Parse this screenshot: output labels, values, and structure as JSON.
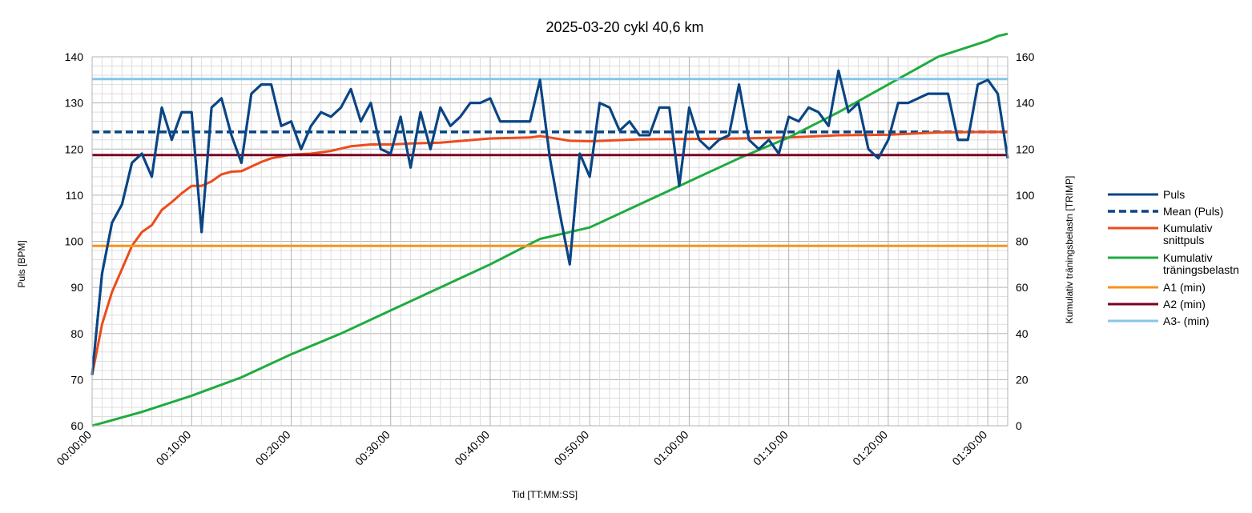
{
  "chart_data": {
    "type": "line",
    "title": "2025-03-20 cykl 40,6 km",
    "xlabel": "Tid [TT:MM:SS]",
    "ylabel": "Puls [BPM]",
    "y2label": "Kumulativ träningsbelastn [TRIMP]",
    "xlim_minutes": [
      0,
      92
    ],
    "ylim": [
      60,
      140
    ],
    "y2lim": [
      0,
      160
    ],
    "x_ticks": [
      "00:00:00",
      "00:10:00",
      "00:20:00",
      "00:30:00",
      "00:40:00",
      "00:50:00",
      "01:00:00",
      "01:10:00",
      "01:20:00",
      "01:30:00"
    ],
    "y_ticks": [
      "60",
      "70",
      "80",
      "90",
      "100",
      "110",
      "120",
      "130",
      "140"
    ],
    "y2_ticks": [
      "0",
      "20",
      "40",
      "60",
      "80",
      "100",
      "120",
      "140",
      "160"
    ],
    "grid": true,
    "legend_position": "right",
    "x_unit": "minutes",
    "series": [
      {
        "name": "Puls",
        "axis": "left",
        "color": "#0a4584",
        "style": "solid",
        "x": [
          0,
          1,
          2,
          3,
          4,
          5,
          6,
          7,
          8,
          9,
          10,
          11,
          12,
          13,
          14,
          15,
          16,
          17,
          18,
          19,
          20,
          21,
          22,
          23,
          24,
          25,
          26,
          27,
          28,
          29,
          30,
          31,
          32,
          33,
          34,
          35,
          36,
          37,
          38,
          39,
          40,
          41,
          42,
          43,
          44,
          45,
          46,
          47,
          48,
          49,
          50,
          51,
          52,
          53,
          54,
          55,
          56,
          57,
          58,
          59,
          60,
          61,
          62,
          63,
          64,
          65,
          66,
          67,
          68,
          69,
          70,
          71,
          72,
          73,
          74,
          75,
          76,
          77,
          78,
          79,
          80,
          81,
          82,
          83,
          84,
          85,
          86,
          87,
          88,
          89,
          90,
          91,
          92
        ],
        "values": [
          71,
          93,
          104,
          108,
          117,
          119,
          114,
          129,
          122,
          128,
          128,
          102,
          129,
          131,
          123,
          117,
          132,
          134,
          134,
          125,
          126,
          120,
          125,
          128,
          127,
          129,
          133,
          126,
          130,
          120,
          119,
          127,
          116,
          128,
          120,
          129,
          125,
          127,
          130,
          130,
          131,
          126,
          126,
          126,
          126,
          135,
          118,
          106,
          95,
          119,
          114,
          130,
          129,
          124,
          126,
          123,
          123,
          129,
          129,
          112,
          129,
          122,
          120,
          122,
          123,
          134,
          122,
          120,
          122,
          119,
          127,
          126,
          129,
          128,
          125,
          137,
          128,
          130,
          120,
          118,
          122,
          130,
          130,
          131,
          132,
          132,
          132,
          122,
          122,
          134,
          135,
          132,
          118
        ]
      },
      {
        "name": "Mean (Puls)",
        "axis": "left",
        "color": "#0a4584",
        "style": "dashed",
        "x": [
          0,
          92
        ],
        "values": [
          123.7,
          123.7
        ]
      },
      {
        "name": "Kumulativ snittpuls",
        "axis": "left",
        "color": "#ee4b1b",
        "style": "solid",
        "x": [
          0,
          1,
          2,
          3,
          4,
          5,
          6,
          7,
          8,
          9,
          10,
          11,
          12,
          13,
          14,
          15,
          16,
          17,
          18,
          19,
          20,
          22,
          24,
          26,
          28,
          30,
          32,
          35,
          40,
          44,
          45,
          46,
          48,
          50,
          55,
          60,
          65,
          70,
          75,
          80,
          85,
          90,
          92
        ],
        "values": [
          71,
          82,
          89,
          94,
          99,
          102,
          103.5,
          106.8,
          108.5,
          110.4,
          112,
          112,
          113,
          114.5,
          115.1,
          115.2,
          116.2,
          117.2,
          118,
          118.4,
          118.8,
          119,
          119.6,
          120.6,
          121,
          121,
          121.2,
          121.4,
          122.3,
          122.5,
          122.8,
          122.5,
          121.8,
          121.7,
          122.1,
          122.2,
          122.3,
          122.5,
          123,
          123.1,
          123.6,
          123.7,
          123.7
        ]
      },
      {
        "name": "Kumulativ träningsbelastn",
        "axis": "right",
        "color": "#1fab3f",
        "style": "solid",
        "x": [
          0,
          5,
          10,
          15,
          20,
          25,
          30,
          35,
          40,
          45,
          50,
          55,
          60,
          65,
          70,
          75,
          80,
          85,
          90,
          91,
          92
        ],
        "values": [
          0,
          6,
          13,
          21,
          31,
          40,
          50,
          60,
          70,
          81,
          86,
          96,
          106,
          116,
          125,
          136,
          148,
          160,
          167,
          169,
          170
        ]
      },
      {
        "name": "A1 (min)",
        "axis": "left",
        "color": "#f7931e",
        "style": "solid",
        "x": [
          0,
          92
        ],
        "values": [
          99,
          99
        ]
      },
      {
        "name": "A2 (min)",
        "axis": "left",
        "color": "#7a0022",
        "style": "solid",
        "x": [
          0,
          92
        ],
        "values": [
          118.7,
          118.7
        ]
      },
      {
        "name": "A3- (min)",
        "axis": "left",
        "color": "#88c6e8",
        "style": "solid",
        "x": [
          0,
          92
        ],
        "values": [
          135.2,
          135.2
        ]
      }
    ],
    "legend_labels": {
      "Puls": [
        "Puls"
      ],
      "Mean (Puls)": [
        "Mean (Puls)"
      ],
      "Kumulativ snittpuls": [
        "Kumulativ",
        "snittpuls"
      ],
      "Kumulativ träningsbelastn": [
        "Kumulativ",
        "träningsbelastn"
      ],
      "A1 (min)": [
        "A1 (min)"
      ],
      "A2 (min)": [
        "A2 (min)"
      ],
      "A3- (min)": [
        "A3- (min)"
      ]
    }
  }
}
